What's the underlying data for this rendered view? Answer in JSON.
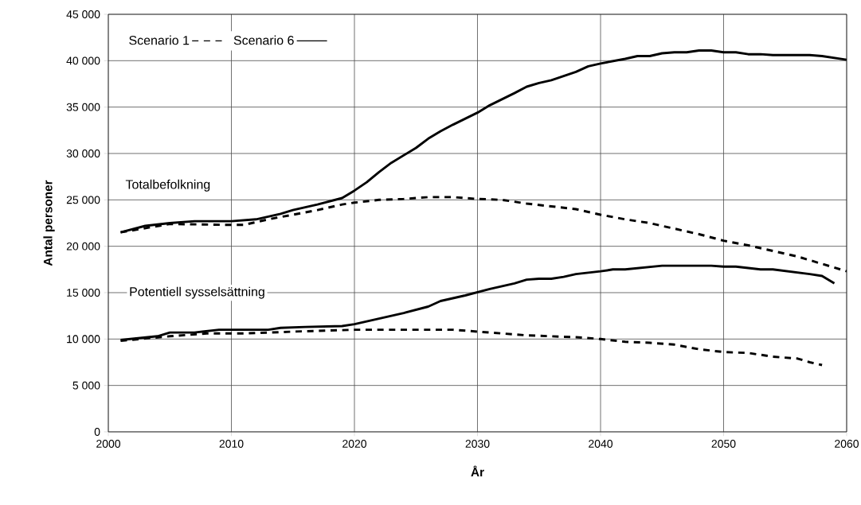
{
  "chart_data": {
    "type": "line",
    "xlabel": "År",
    "ylabel": "Antal personer",
    "xlim": [
      2000,
      2060
    ],
    "xticks": [
      2000,
      2010,
      2020,
      2030,
      2040,
      2050,
      2060
    ],
    "ylim": [
      0,
      45000
    ],
    "yticks": [
      {
        "value": 0,
        "label": "0"
      },
      {
        "value": 5000,
        "label": "5 000"
      },
      {
        "value": 10000,
        "label": "10 000"
      },
      {
        "value": 15000,
        "label": "15 000"
      },
      {
        "value": 20000,
        "label": "20 000"
      },
      {
        "value": 25000,
        "label": "25 000"
      },
      {
        "value": 30000,
        "label": "30 000"
      },
      {
        "value": 35000,
        "label": "35 000"
      },
      {
        "value": 40000,
        "label": "40 000"
      },
      {
        "value": 45000,
        "label": "45 000"
      }
    ],
    "grid": true,
    "legend": "top left",
    "series": [
      {
        "name": "Scenario 1",
        "color": "#000000",
        "line_style": "dashed",
        "x": [
          2001,
          2005,
          2010,
          2011,
          2013,
          2015,
          2017,
          2019,
          2020,
          2022,
          2024,
          2026,
          2028,
          2030,
          2032,
          2034,
          2036,
          2038,
          2040,
          2042,
          2044,
          2046,
          2048,
          2050,
          2052,
          2054,
          2056,
          2058,
          2060
        ],
        "values": [
          21500,
          22400,
          22300,
          22300,
          22900,
          23400,
          23900,
          24500,
          24700,
          25000,
          25100,
          25300,
          25300,
          25100,
          25000,
          24600,
          24300,
          24000,
          23400,
          22900,
          22500,
          21900,
          21300,
          20600,
          20100,
          19500,
          18900,
          18100,
          17300
        ]
      },
      {
        "name": "Scenario 6",
        "color": "#000000",
        "line_style": "solid",
        "x": [
          2001,
          2003,
          2005,
          2007,
          2010,
          2012,
          2014,
          2015,
          2017,
          2019,
          2020,
          2021,
          2022,
          2023,
          2025,
          2026,
          2027,
          2028,
          2030,
          2031,
          2033,
          2034,
          2035,
          2036,
          2038,
          2039,
          2040,
          2042,
          2043,
          2044,
          2045,
          2046,
          2047,
          2048,
          2049,
          2050,
          2051,
          2052,
          2053,
          2054,
          2057,
          2058,
          2060
        ],
        "values": [
          21500,
          22200,
          22500,
          22700,
          22700,
          22900,
          23500,
          23900,
          24500,
          25200,
          26000,
          26900,
          28000,
          29000,
          30600,
          31600,
          32400,
          33100,
          34400,
          35200,
          36500,
          37200,
          37600,
          37900,
          38800,
          39400,
          39700,
          40200,
          40500,
          40500,
          40800,
          40900,
          40900,
          41100,
          41100,
          40900,
          40900,
          40700,
          40700,
          40600,
          40600,
          40500,
          40100
        ]
      },
      {
        "color": "#000000",
        "line_style": "dashed",
        "x": [
          2001,
          2005,
          2008,
          2011,
          2015,
          2020,
          2022,
          2025,
          2028,
          2030,
          2032,
          2034,
          2036,
          2038,
          2040,
          2042,
          2044,
          2046,
          2048,
          2050,
          2052,
          2054,
          2056,
          2057,
          2058
        ],
        "values": [
          9800,
          10300,
          10600,
          10600,
          10800,
          11000,
          11000,
          11000,
          11000,
          10800,
          10600,
          10400,
          10300,
          10200,
          10000,
          9700,
          9600,
          9400,
          8900,
          8600,
          8500,
          8100,
          7900,
          7500,
          7200
        ]
      },
      {
        "color": "#000000",
        "line_style": "solid",
        "x": [
          2001,
          2004,
          2005,
          2007,
          2009,
          2012,
          2013,
          2014,
          2016,
          2019,
          2020,
          2022,
          2024,
          2026,
          2027,
          2029,
          2031,
          2033,
          2034,
          2035,
          2036,
          2037,
          2038,
          2040,
          2041,
          2042,
          2045,
          2049,
          2050,
          2051,
          2053,
          2054,
          2057,
          2058,
          2059
        ],
        "values": [
          9900,
          10300,
          10700,
          10700,
          11000,
          11000,
          11000,
          11200,
          11300,
          11400,
          11600,
          12200,
          12800,
          13500,
          14100,
          14700,
          15400,
          16000,
          16400,
          16500,
          16500,
          16700,
          17000,
          17300,
          17500,
          17500,
          17900,
          17900,
          17800,
          17800,
          17500,
          17500,
          17000,
          16800,
          16000
        ]
      }
    ],
    "annotations": [
      "Totalbefolkning",
      "Potentiell sysselsättning"
    ]
  }
}
